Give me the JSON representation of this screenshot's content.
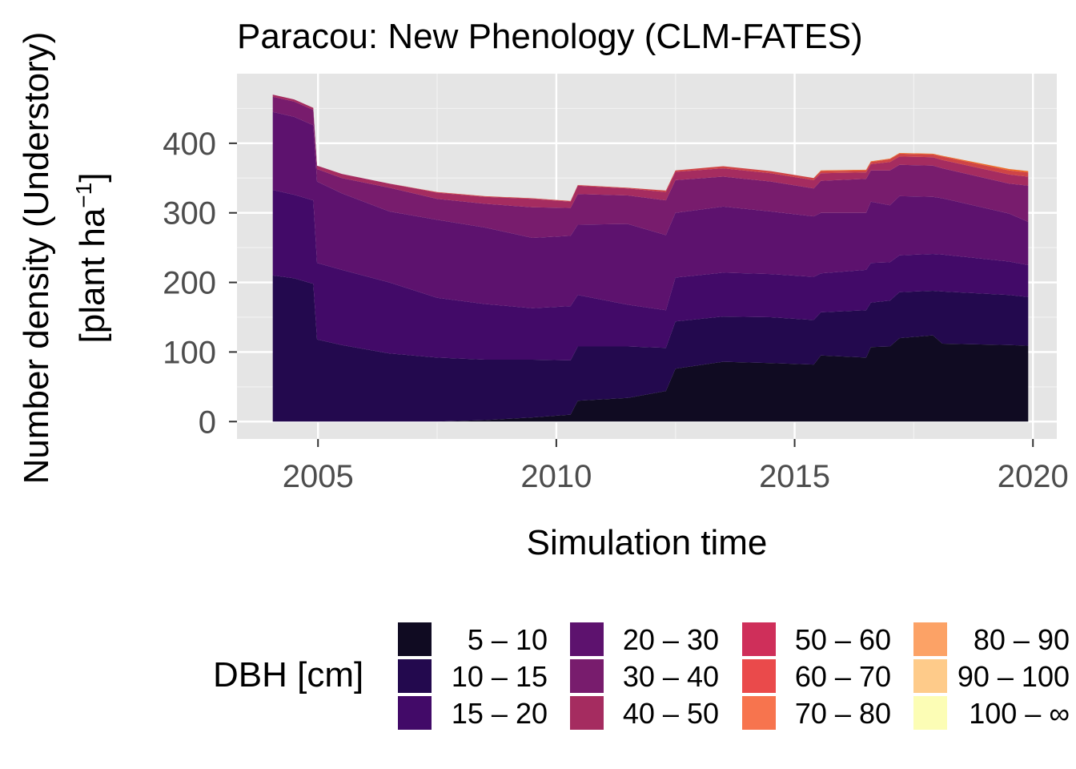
{
  "chart_data": {
    "type": "area",
    "stacked": true,
    "title": "Paracou: New Phenology (CLM-FATES)",
    "xlabel": "Simulation time",
    "ylabel_line1": "Number density (Understory)",
    "ylabel_line2_prefix": "[plant ha",
    "ylabel_line2_sup": "−1",
    "ylabel_line2_suffix": "]",
    "xlim": [
      2003.3,
      2020.5
    ],
    "ylim": [
      -25,
      500
    ],
    "xticks": [
      2005,
      2010,
      2015,
      2020
    ],
    "yticks": [
      0,
      100,
      200,
      300,
      400
    ],
    "grid": true,
    "legend_position": "bottom",
    "legend_title": "DBH [cm]",
    "x": [
      2004.05,
      2004.5,
      2004.9,
      2004.98,
      2005.5,
      2006.5,
      2007.5,
      2008.5,
      2009.5,
      2010.3,
      2010.45,
      2011.5,
      2012.3,
      2012.5,
      2013.5,
      2014.5,
      2015.4,
      2015.55,
      2016.5,
      2016.6,
      2017.0,
      2017.2,
      2017.9,
      2018.1,
      2019.5,
      2019.9
    ],
    "series": [
      {
        "name": "5 – 10",
        "color": "#100b22",
        "values": [
          0,
          0,
          0,
          0,
          0,
          0,
          0,
          2,
          6,
          10,
          30,
          34,
          44,
          76,
          86,
          84,
          82,
          95,
          92,
          107,
          108,
          120,
          124,
          112,
          110,
          109
        ]
      },
      {
        "name": "10 – 15",
        "color": "#23094e",
        "values": [
          210,
          206,
          198,
          118,
          110,
          98,
          92,
          87,
          83,
          78,
          78,
          74,
          62,
          68,
          65,
          66,
          64,
          62,
          68,
          64,
          66,
          66,
          64,
          75,
          72,
          70
        ]
      },
      {
        "name": "15 – 20",
        "color": "#420a68",
        "values": [
          123,
          120,
          120,
          110,
          108,
          102,
          86,
          80,
          74,
          78,
          74,
          60,
          54,
          63,
          63,
          62,
          62,
          56,
          58,
          57,
          55,
          53,
          53,
          53,
          48,
          46
        ]
      },
      {
        "name": "20 – 30",
        "color": "#5d126e",
        "values": [
          112,
          112,
          108,
          117,
          110,
          102,
          112,
          110,
          101,
          101,
          101,
          116,
          108,
          93,
          95,
          90,
          87,
          87,
          82,
          88,
          82,
          85,
          82,
          81,
          69,
          62
        ]
      },
      {
        "name": "30 – 40",
        "color": "#781c6d",
        "values": [
          22,
          22,
          22,
          18,
          22,
          34,
          30,
          34,
          44,
          40,
          44,
          41,
          50,
          47,
          43,
          43,
          40,
          46,
          49,
          45,
          50,
          45,
          45,
          43,
          43,
          52
        ]
      },
      {
        "name": "40 – 50",
        "color": "#a52c60",
        "values": [
          3,
          3,
          3,
          5,
          6,
          6,
          9,
          10,
          12,
          9,
          12,
          10,
          12,
          12,
          12,
          12,
          12,
          11,
          9,
          9,
          12,
          12,
          12,
          12,
          13,
          13
        ]
      },
      {
        "name": "50 – 60",
        "color": "#cf4446",
        "values": [
          0,
          0,
          0,
          0,
          0,
          0,
          1,
          1,
          1,
          1,
          1,
          1,
          2,
          2,
          3,
          3,
          3,
          3,
          3,
          3,
          4,
          4,
          4,
          5,
          6,
          6
        ]
      },
      {
        "name": "60 – 70",
        "color": "#ed6925",
        "values": [
          0,
          0,
          0,
          0,
          0,
          0,
          0,
          0,
          0,
          0,
          0,
          0,
          0,
          0,
          0,
          0,
          0,
          1,
          1,
          1,
          1,
          1,
          1,
          1,
          2,
          2
        ]
      },
      {
        "name": "70 – 80",
        "color": "#fb9b06",
        "values": [
          0,
          0,
          0,
          0,
          0,
          0,
          0,
          0,
          0,
          0,
          0,
          0,
          0,
          0,
          0,
          0,
          0,
          0,
          0,
          0,
          0,
          0,
          0,
          0,
          0,
          0
        ]
      },
      {
        "name": "80 – 90",
        "color": "#f7d13d",
        "values": [
          0,
          0,
          0,
          0,
          0,
          0,
          0,
          0,
          0,
          0,
          0,
          0,
          0,
          0,
          0,
          0,
          0,
          0,
          0,
          0,
          0,
          0,
          0,
          0,
          0,
          0
        ]
      },
      {
        "name": "90 – 100",
        "color": "#f6ed7a",
        "values": [
          0,
          0,
          0,
          0,
          0,
          0,
          0,
          0,
          0,
          0,
          0,
          0,
          0,
          0,
          0,
          0,
          0,
          0,
          0,
          0,
          0,
          0,
          0,
          0,
          0,
          0
        ]
      },
      {
        "name": "100 – ∞",
        "color": "#fcffa4",
        "values": [
          0,
          0,
          0,
          0,
          0,
          0,
          0,
          0,
          0,
          0,
          0,
          0,
          0,
          0,
          0,
          0,
          0,
          0,
          0,
          0,
          0,
          0,
          0,
          0,
          0,
          0
        ]
      }
    ],
    "legend": [
      {
        "label": "5 – 10",
        "color": "#100b22"
      },
      {
        "label": "10 – 15",
        "color": "#23094e"
      },
      {
        "label": "15 – 20",
        "color": "#420a68"
      },
      {
        "label": "20 – 30",
        "color": "#5d126e"
      },
      {
        "label": "30 – 40",
        "color": "#781c6d"
      },
      {
        "label": "40 – 50",
        "color": "#a52c60"
      },
      {
        "label": "50 – 60",
        "color": "#cf2f5a"
      },
      {
        "label": "60 – 70",
        "color": "#ea4a4b"
      },
      {
        "label": "70 – 80",
        "color": "#f7744e"
      },
      {
        "label": "80 – 90",
        "color": "#fca266"
      },
      {
        "label": "90 – 100",
        "color": "#fecb8a"
      },
      {
        "label": "100 – ∞",
        "color": "#fcfdb5"
      }
    ]
  }
}
